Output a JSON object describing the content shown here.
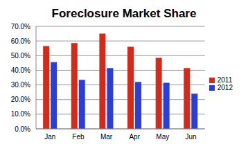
{
  "chart_data": {
    "type": "bar",
    "title": "Foreclosure Market Share",
    "categories": [
      "Jan",
      "Feb",
      "Mar",
      "Apr",
      "May",
      "Jun"
    ],
    "series": [
      {
        "name": "2011",
        "color": "#d42a1c",
        "values": [
          56.5,
          58.5,
          65,
          56,
          48.5,
          41.5
        ]
      },
      {
        "name": "2012",
        "color": "#2b3fd6",
        "values": [
          45.5,
          33.5,
          41.5,
          32,
          31.5,
          24
        ]
      }
    ],
    "ylim": [
      0,
      70
    ],
    "yticks": [
      {
        "value": 0,
        "label": "0.0%"
      },
      {
        "value": 10,
        "label": "10.0%"
      },
      {
        "value": 20,
        "label": "20.0%"
      },
      {
        "value": 30,
        "label": "30.0%"
      },
      {
        "value": 40,
        "label": "40.0%"
      },
      {
        "value": 50,
        "label": "50.0%"
      },
      {
        "value": 60,
        "label": "60.0%"
      },
      {
        "value": 70,
        "label": "70.0%"
      }
    ],
    "grid": true,
    "legend": "right"
  }
}
